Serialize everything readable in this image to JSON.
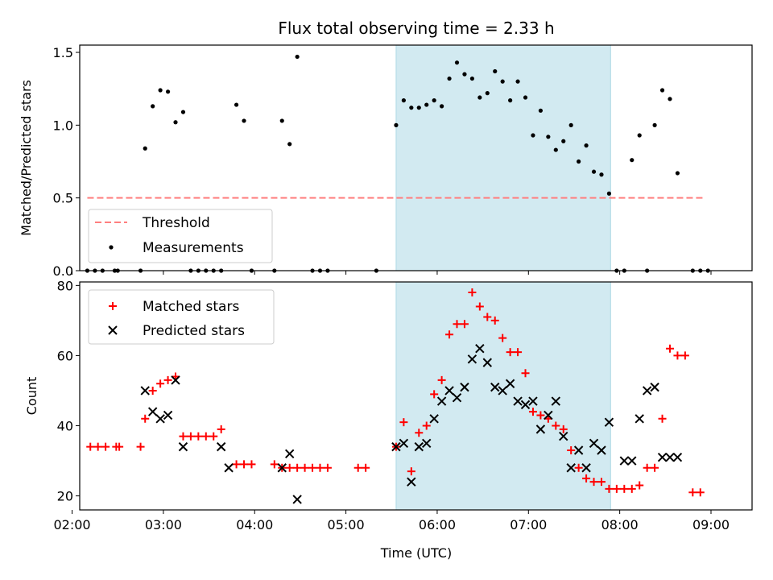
{
  "chart_data": {
    "type": "scatter",
    "title": "Flux total observing time = 2.33 h",
    "xlabel": "Time (UTC)",
    "x_ticks": [
      "02:00",
      "03:00",
      "04:00",
      "05:00",
      "06:00",
      "07:00",
      "08:00",
      "09:00"
    ],
    "x_range": [
      "02:05",
      "09:27"
    ],
    "highlight_range": [
      "05:33",
      "07:54"
    ],
    "colors": {
      "highlight": "#add8e6",
      "threshold": "#ff7f7f",
      "matched": "#ff0000",
      "predicted": "#000000",
      "measurement": "#000000"
    },
    "panels": [
      {
        "ylabel": "Matched/Predicted stars",
        "ylim": [
          0,
          1.55
        ],
        "y_ticks": [
          "0.0",
          "0.5",
          "1.0",
          "1.5"
        ],
        "legend_position": "lower-left",
        "threshold": {
          "name": "Threshold",
          "value": 0.5,
          "x_start": "02:10",
          "x_end": "08:55"
        },
        "series": [
          {
            "name": "Measurements",
            "x": [
              "02:10",
              "02:15",
              "02:20",
              "02:28",
              "02:30",
              "02:45",
              "02:48",
              "02:53",
              "02:58",
              "03:03",
              "03:08",
              "03:13",
              "03:18",
              "03:23",
              "03:28",
              "03:33",
              "03:38",
              "03:48",
              "03:53",
              "03:58",
              "04:13",
              "04:18",
              "04:23",
              "04:28",
              "04:38",
              "04:43",
              "04:48",
              "05:20",
              "05:33",
              "05:38",
              "05:43",
              "05:48",
              "05:53",
              "05:58",
              "06:03",
              "06:08",
              "06:13",
              "06:18",
              "06:23",
              "06:28",
              "06:33",
              "06:38",
              "06:43",
              "06:48",
              "06:53",
              "06:58",
              "07:03",
              "07:08",
              "07:13",
              "07:18",
              "07:23",
              "07:28",
              "07:33",
              "07:38",
              "07:43",
              "07:48",
              "07:53",
              "07:58",
              "08:03",
              "08:08",
              "08:13",
              "08:18",
              "08:23",
              "08:28",
              "08:33",
              "08:38",
              "08:48",
              "08:53",
              "08:58"
            ],
            "y": [
              0.0,
              0.0,
              0.0,
              0.0,
              0.0,
              0.0,
              0.84,
              1.13,
              1.24,
              1.23,
              1.02,
              1.09,
              0.0,
              0.0,
              0.0,
              0.0,
              0.0,
              1.14,
              1.03,
              0.0,
              0.0,
              1.03,
              0.87,
              1.47,
              0.0,
              0.0,
              0.0,
              0.0,
              1.0,
              1.17,
              1.12,
              1.12,
              1.14,
              1.17,
              1.13,
              1.32,
              1.43,
              1.35,
              1.32,
              1.19,
              1.22,
              1.37,
              1.3,
              1.17,
              1.3,
              1.19,
              0.93,
              1.1,
              0.92,
              0.83,
              0.89,
              1.0,
              0.75,
              0.86,
              0.68,
              0.66,
              0.53,
              0.0,
              0.0,
              0.76,
              0.93,
              0.0,
              1.0,
              1.24,
              1.18,
              0.67,
              0.0,
              0.0,
              0.0
            ]
          }
        ]
      },
      {
        "ylabel": "Count",
        "ylim": [
          16,
          81
        ],
        "y_ticks": [
          "20",
          "40",
          "60",
          "80"
        ],
        "legend_position": "upper-left",
        "series": [
          {
            "name": "Matched stars",
            "marker": "+",
            "x": [
              "02:12",
              "02:17",
              "02:22",
              "02:29",
              "02:31",
              "02:45",
              "02:48",
              "02:53",
              "02:58",
              "03:03",
              "03:08",
              "03:13",
              "03:18",
              "03:23",
              "03:28",
              "03:33",
              "03:38",
              "03:48",
              "03:53",
              "03:58",
              "04:13",
              "04:18",
              "04:23",
              "04:28",
              "04:33",
              "04:38",
              "04:43",
              "04:48",
              "05:08",
              "05:13",
              "05:33",
              "05:38",
              "05:43",
              "05:48",
              "05:53",
              "05:58",
              "06:03",
              "06:08",
              "06:13",
              "06:18",
              "06:23",
              "06:28",
              "06:33",
              "06:38",
              "06:43",
              "06:48",
              "06:53",
              "06:58",
              "07:03",
              "07:08",
              "07:13",
              "07:18",
              "07:23",
              "07:28",
              "07:33",
              "07:38",
              "07:43",
              "07:48",
              "07:53",
              "07:58",
              "08:03",
              "08:08",
              "08:13",
              "08:18",
              "08:23",
              "08:28",
              "08:33",
              "08:38",
              "08:43",
              "08:48",
              "08:53"
            ],
            "y": [
              34,
              34,
              34,
              34,
              34,
              34,
              42,
              50,
              52,
              53,
              54,
              37,
              37,
              37,
              37,
              37,
              39,
              29,
              29,
              29,
              29,
              28,
              28,
              28,
              28,
              28,
              28,
              28,
              28,
              28,
              34,
              41,
              27,
              38,
              40,
              49,
              53,
              66,
              69,
              69,
              78,
              74,
              71,
              70,
              65,
              61,
              61,
              55,
              44,
              43,
              42,
              40,
              39,
              33,
              28,
              25,
              24,
              24,
              22,
              22,
              22,
              22,
              23,
              28,
              28,
              42,
              62,
              60,
              60,
              21,
              21
            ]
          },
          {
            "name": "Predicted stars",
            "marker": "x",
            "x": [
              "02:48",
              "02:53",
              "02:58",
              "03:03",
              "03:08",
              "03:13",
              "03:38",
              "03:43",
              "04:18",
              "04:23",
              "04:28",
              "05:33",
              "05:38",
              "05:43",
              "05:48",
              "05:53",
              "05:58",
              "06:03",
              "06:08",
              "06:13",
              "06:18",
              "06:23",
              "06:28",
              "06:33",
              "06:38",
              "06:43",
              "06:48",
              "06:53",
              "06:58",
              "07:03",
              "07:08",
              "07:13",
              "07:18",
              "07:23",
              "07:28",
              "07:33",
              "07:38",
              "07:43",
              "07:48",
              "07:53",
              "08:03",
              "08:08",
              "08:13",
              "08:18",
              "08:23",
              "08:28",
              "08:33",
              "08:38"
            ],
            "y": [
              50,
              44,
              42,
              43,
              53,
              34,
              34,
              28,
              28,
              32,
              19,
              34,
              35,
              24,
              34,
              35,
              42,
              47,
              50,
              48,
              51,
              59,
              62,
              58,
              51,
              50,
              52,
              47,
              46,
              47,
              39,
              43,
              47,
              37,
              28,
              33,
              28,
              35,
              33,
              41,
              30,
              30,
              42,
              50,
              51,
              31,
              31,
              31
            ]
          }
        ]
      }
    ]
  }
}
